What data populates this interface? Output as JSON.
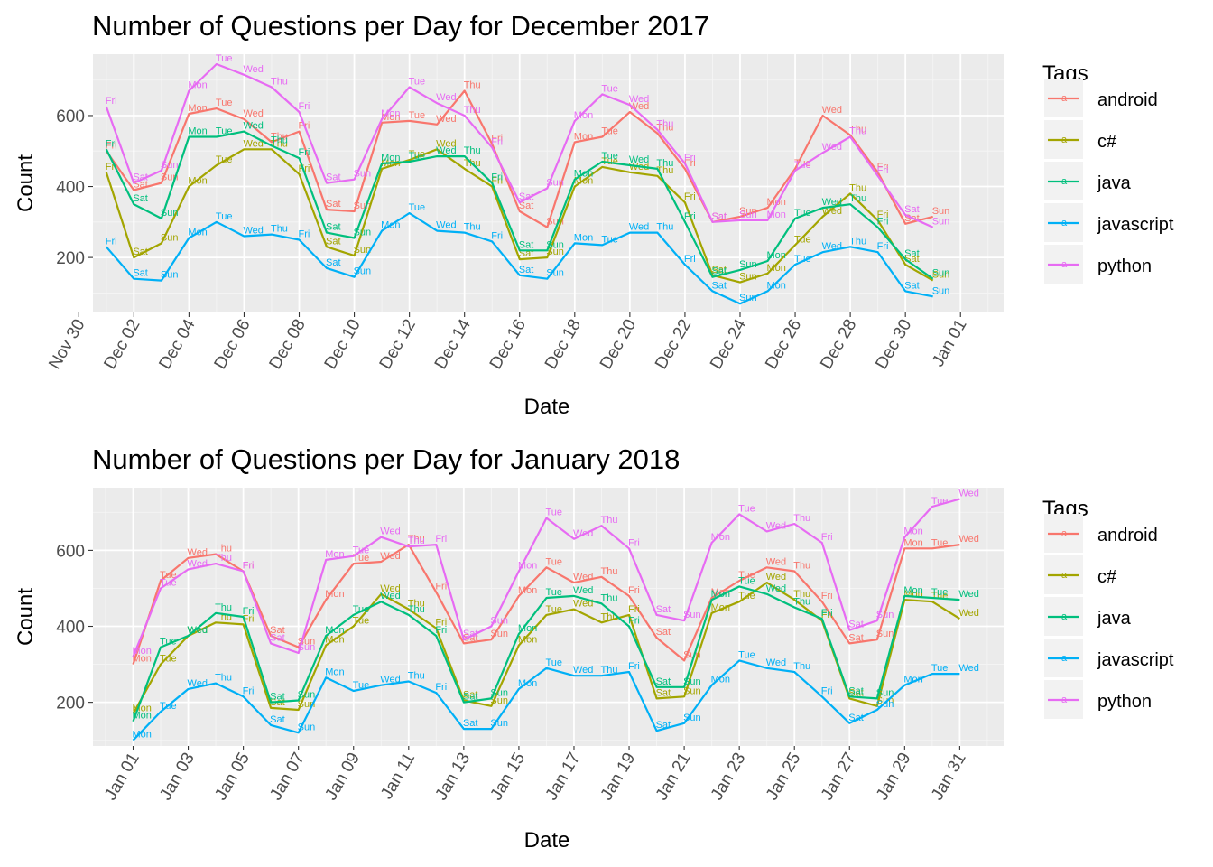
{
  "chart_data": [
    {
      "type": "line",
      "title": "Number of Questions per Day for December 2017",
      "xlabel": "Date",
      "ylabel": "Count",
      "x_tick_labels": [
        "Nov 30",
        "Dec 02",
        "Dec 04",
        "Dec 06",
        "Dec 08",
        "Dec 10",
        "Dec 12",
        "Dec 14",
        "Dec 16",
        "Dec 18",
        "Dec 20",
        "Dec 22",
        "Dec 24",
        "Dec 26",
        "Dec 28",
        "Dec 30",
        "Jan 01"
      ],
      "y_ticks": [
        200,
        400,
        600
      ],
      "ylim": [
        45,
        773
      ],
      "days": [
        1,
        31
      ],
      "legend_title": "Tags",
      "legend_placement": "right",
      "grid": true,
      "weekdays": [
        "Fri",
        "Sat",
        "Sun",
        "Mon",
        "Tue",
        "Wed",
        "Thu",
        "Fri",
        "Sat",
        "Sun",
        "Mon",
        "Tue",
        "Wed",
        "Thu",
        "Fri",
        "Sat",
        "Sun",
        "Mon",
        "Tue",
        "Wed",
        "Thu",
        "Fri",
        "Sat",
        "Sun",
        "Mon",
        "Tue",
        "Wed",
        "Thu",
        "Fri",
        "Sat",
        "Sun"
      ],
      "series": [
        {
          "name": "android",
          "color": "#F8766D",
          "values": [
            500,
            390,
            410,
            605,
            620,
            590,
            525,
            555,
            335,
            330,
            580,
            585,
            575,
            670,
            520,
            330,
            285,
            525,
            540,
            610,
            550,
            450,
            300,
            315,
            340,
            450,
            600,
            545,
            440,
            295,
            315
          ]
        },
        {
          "name": "c#",
          "color": "#A3A500",
          "values": [
            440,
            200,
            240,
            400,
            460,
            505,
            505,
            435,
            230,
            205,
            450,
            475,
            505,
            450,
            400,
            195,
            200,
            400,
            455,
            440,
            430,
            355,
            150,
            130,
            155,
            235,
            315,
            380,
            305,
            180,
            135
          ]
        },
        {
          "name": "java",
          "color": "#00BF7D",
          "values": [
            505,
            350,
            310,
            540,
            540,
            555,
            515,
            480,
            270,
            255,
            465,
            470,
            485,
            485,
            410,
            220,
            220,
            420,
            470,
            460,
            450,
            300,
            145,
            165,
            190,
            310,
            340,
            350,
            285,
            195,
            140
          ]
        },
        {
          "name": "javascript",
          "color": "#00B0F6",
          "values": [
            230,
            140,
            135,
            255,
            300,
            260,
            265,
            250,
            170,
            145,
            275,
            325,
            275,
            270,
            245,
            150,
            140,
            240,
            235,
            270,
            270,
            180,
            105,
            70,
            105,
            180,
            215,
            230,
            215,
            105,
            90
          ]
        },
        {
          "name": "python",
          "color": "#E76BF3",
          "values": [
            625,
            410,
            445,
            670,
            745,
            715,
            680,
            610,
            410,
            420,
            590,
            680,
            635,
            600,
            510,
            355,
            395,
            585,
            660,
            630,
            560,
            465,
            300,
            305,
            305,
            445,
            495,
            540,
            430,
            320,
            285
          ]
        }
      ]
    },
    {
      "type": "line",
      "title": "Number of Questions per Day for January 2018",
      "xlabel": "Date",
      "ylabel": "Count",
      "x_tick_labels": [
        "Jan 01",
        "Jan 03",
        "Jan 05",
        "Jan 07",
        "Jan 09",
        "Jan 11",
        "Jan 13",
        "Jan 15",
        "Jan 17",
        "Jan 19",
        "Jan 21",
        "Jan 23",
        "Jan 25",
        "Jan 27",
        "Jan 29",
        "Jan 31"
      ],
      "y_ticks": [
        200,
        400,
        600
      ],
      "ylim": [
        85,
        765
      ],
      "days": [
        1,
        31
      ],
      "legend_title": "Tags",
      "legend_placement": "right",
      "grid": true,
      "weekdays": [
        "Mon",
        "Tue",
        "Wed",
        "Thu",
        "Fri",
        "Sat",
        "Sun",
        "Mon",
        "Tue",
        "Wed",
        "Thu",
        "Fri",
        "Sat",
        "Sun",
        "Mon",
        "Tue",
        "Wed",
        "Thu",
        "Fri",
        "Sat",
        "Sun",
        "Mon",
        "Tue",
        "Wed",
        "Thu",
        "Fri",
        "Sat",
        "Sun",
        "Mon",
        "Tue",
        "Wed"
      ],
      "series": [
        {
          "name": "android",
          "color": "#F8766D",
          "values": [
            300,
            520,
            580,
            590,
            545,
            375,
            345,
            470,
            565,
            570,
            615,
            490,
            355,
            365,
            480,
            555,
            515,
            530,
            480,
            370,
            310,
            475,
            520,
            555,
            545,
            465,
            355,
            365,
            605,
            605,
            615
          ]
        },
        {
          "name": "c#",
          "color": "#A3A500",
          "values": [
            170,
            300,
            375,
            410,
            405,
            185,
            180,
            350,
            400,
            485,
            445,
            395,
            205,
            190,
            350,
            430,
            445,
            410,
            430,
            210,
            215,
            435,
            465,
            515,
            470,
            415,
            210,
            190,
            470,
            465,
            420
          ]
        },
        {
          "name": "java",
          "color": "#00BF7D",
          "values": [
            150,
            345,
            375,
            435,
            425,
            200,
            205,
            375,
            430,
            465,
            430,
            375,
            200,
            210,
            380,
            475,
            480,
            460,
            400,
            240,
            240,
            470,
            505,
            485,
            450,
            420,
            215,
            210,
            480,
            475,
            470
          ]
        },
        {
          "name": "javascript",
          "color": "#00B0F6",
          "values": [
            100,
            175,
            235,
            250,
            215,
            140,
            120,
            265,
            230,
            245,
            255,
            225,
            130,
            130,
            235,
            290,
            270,
            270,
            280,
            125,
            145,
            245,
            310,
            290,
            280,
            215,
            145,
            180,
            245,
            275,
            275
          ]
        },
        {
          "name": "python",
          "color": "#E76BF3",
          "values": [
            320,
            500,
            550,
            565,
            545,
            355,
            330,
            575,
            585,
            635,
            610,
            615,
            365,
            400,
            545,
            685,
            630,
            665,
            605,
            430,
            415,
            620,
            695,
            650,
            670,
            620,
            390,
            415,
            635,
            715,
            735
          ]
        }
      ]
    }
  ]
}
